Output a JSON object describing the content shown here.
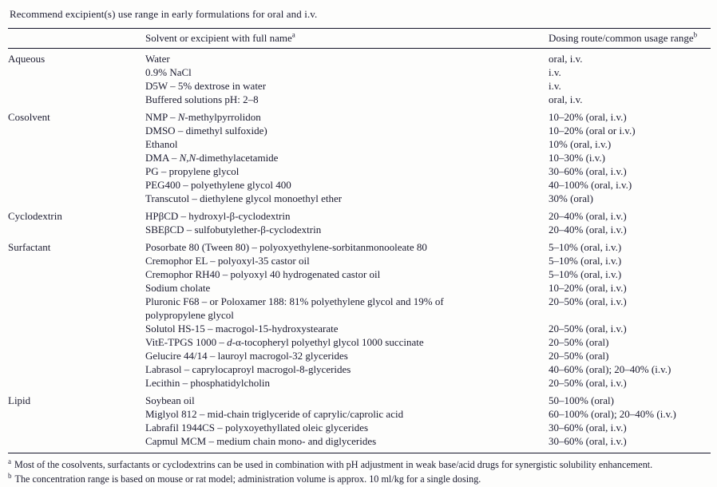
{
  "title": "Recommend excipient(s) use range in early formulations for oral and i.v.",
  "header": {
    "solvent_label": "Solvent or excipient with full name",
    "solvent_note": "a",
    "dosing_label": "Dosing route/common usage range",
    "dosing_note": "b"
  },
  "sections": [
    {
      "category": "Aqueous",
      "rows": [
        {
          "name": "Water",
          "dosing": "oral, i.v."
        },
        {
          "name": "0.9% NaCl",
          "dosing": "i.v."
        },
        {
          "name": "D5W – 5% dextrose in water",
          "dosing": "i.v."
        },
        {
          "name": "Buffered solutions pH: 2–8",
          "dosing": "oral, i.v."
        }
      ]
    },
    {
      "category": "Cosolvent",
      "rows": [
        {
          "name": "NMP – *N*-methylpyrrolidon",
          "dosing": "10–20% (oral, i.v.)"
        },
        {
          "name": "DMSO – dimethyl sulfoxide)",
          "dosing": "10–20% (oral or i.v.)"
        },
        {
          "name": "Ethanol",
          "dosing": "10% (oral, i.v.)"
        },
        {
          "name": "DMA – *N,N*-dimethylacetamide",
          "dosing": "10–30% (i.v.)"
        },
        {
          "name": "PG – propylene glycol",
          "dosing": "30–60% (oral, i.v.)"
        },
        {
          "name": "PEG400 – polyethylene glycol 400",
          "dosing": "40–100% (oral, i.v.)"
        },
        {
          "name": "Transcutol – diethylene glycol monoethyl ether",
          "dosing": "30% (oral)"
        }
      ]
    },
    {
      "category": "Cyclodextrin",
      "rows": [
        {
          "name": "HPβCD – hydroxyl-β-cyclodextrin",
          "dosing": "20–40% (oral, i.v.)"
        },
        {
          "name": "SBEβCD – sulfobutylether-β-cyclodextrin",
          "dosing": "20–40% (oral, i.v.)"
        }
      ]
    },
    {
      "category": "Surfactant",
      "rows": [
        {
          "name": "Posorbate 80 (Tween 80) – polyoxyethylene-sorbitanmonooleate 80",
          "dosing": "5–10% (oral, i.v.)"
        },
        {
          "name": "Cremophor EL – polyoxyl-35 castor oil",
          "dosing": "5–10% (oral, i.v.)"
        },
        {
          "name": "Cremophor RH40 – polyoxyl 40 hydrogenated castor oil",
          "dosing": "5–10% (oral, i.v.)"
        },
        {
          "name": "Sodium cholate",
          "dosing": "10–20% (oral, i.v.)"
        },
        {
          "name": "Pluronic F68 – or Poloxamer 188: 81% polyethylene glycol and 19% of\npolypropylene glycol",
          "dosing": "20–50% (oral, i.v.)"
        },
        {
          "name": "Solutol HS-15 – macrogol-15-hydroxystearate",
          "dosing": "20–50% (oral, i.v.)"
        },
        {
          "name": "VitE-TPGS 1000 – *d*-α-tocopheryl polyethyl glycol 1000 succinate",
          "dosing": "20–50% (oral)"
        },
        {
          "name": "Gelucire 44/14 – lauroyl macrogol-32 glycerides",
          "dosing": "20–50% (oral)"
        },
        {
          "name": "Labrasol – caprylocaproyl macrogol-8-glycerides",
          "dosing": "40–60% (oral); 20–40% (i.v.)"
        },
        {
          "name": "Lecithin – phosphatidylcholin",
          "dosing": "20–50% (oral, i.v.)"
        }
      ]
    },
    {
      "category": "Lipid",
      "rows": [
        {
          "name": "Soybean oil",
          "dosing": "50–100% (oral)"
        },
        {
          "name": "Miglyol 812 – mid-chain triglyceride of caprylic/caprolic acid",
          "dosing": "60–100% (oral); 20–40% (i.v.)"
        },
        {
          "name": "Labrafil 1944CS – polyxoyethyllated oleic glycerides",
          "dosing": "30–60% (oral, i.v.)"
        },
        {
          "name": "Capmul MCM – medium chain mono- and diglycerides",
          "dosing": "30–60% (oral, i.v.)"
        }
      ]
    }
  ],
  "footnotes": [
    {
      "marker": "a",
      "text": "Most of the cosolvents, surfactants or cyclodextrins can be used in combination with pH adjustment in weak base/acid drugs for synergistic solubility enhancement."
    },
    {
      "marker": "b",
      "text": "The concentration range is based on mouse or rat model; administration volume is approx. 10 ml/kg for a single dosing."
    }
  ],
  "colors": {
    "text": "#1c1c30",
    "rule": "#15152a",
    "background": "#fdfdfc"
  }
}
